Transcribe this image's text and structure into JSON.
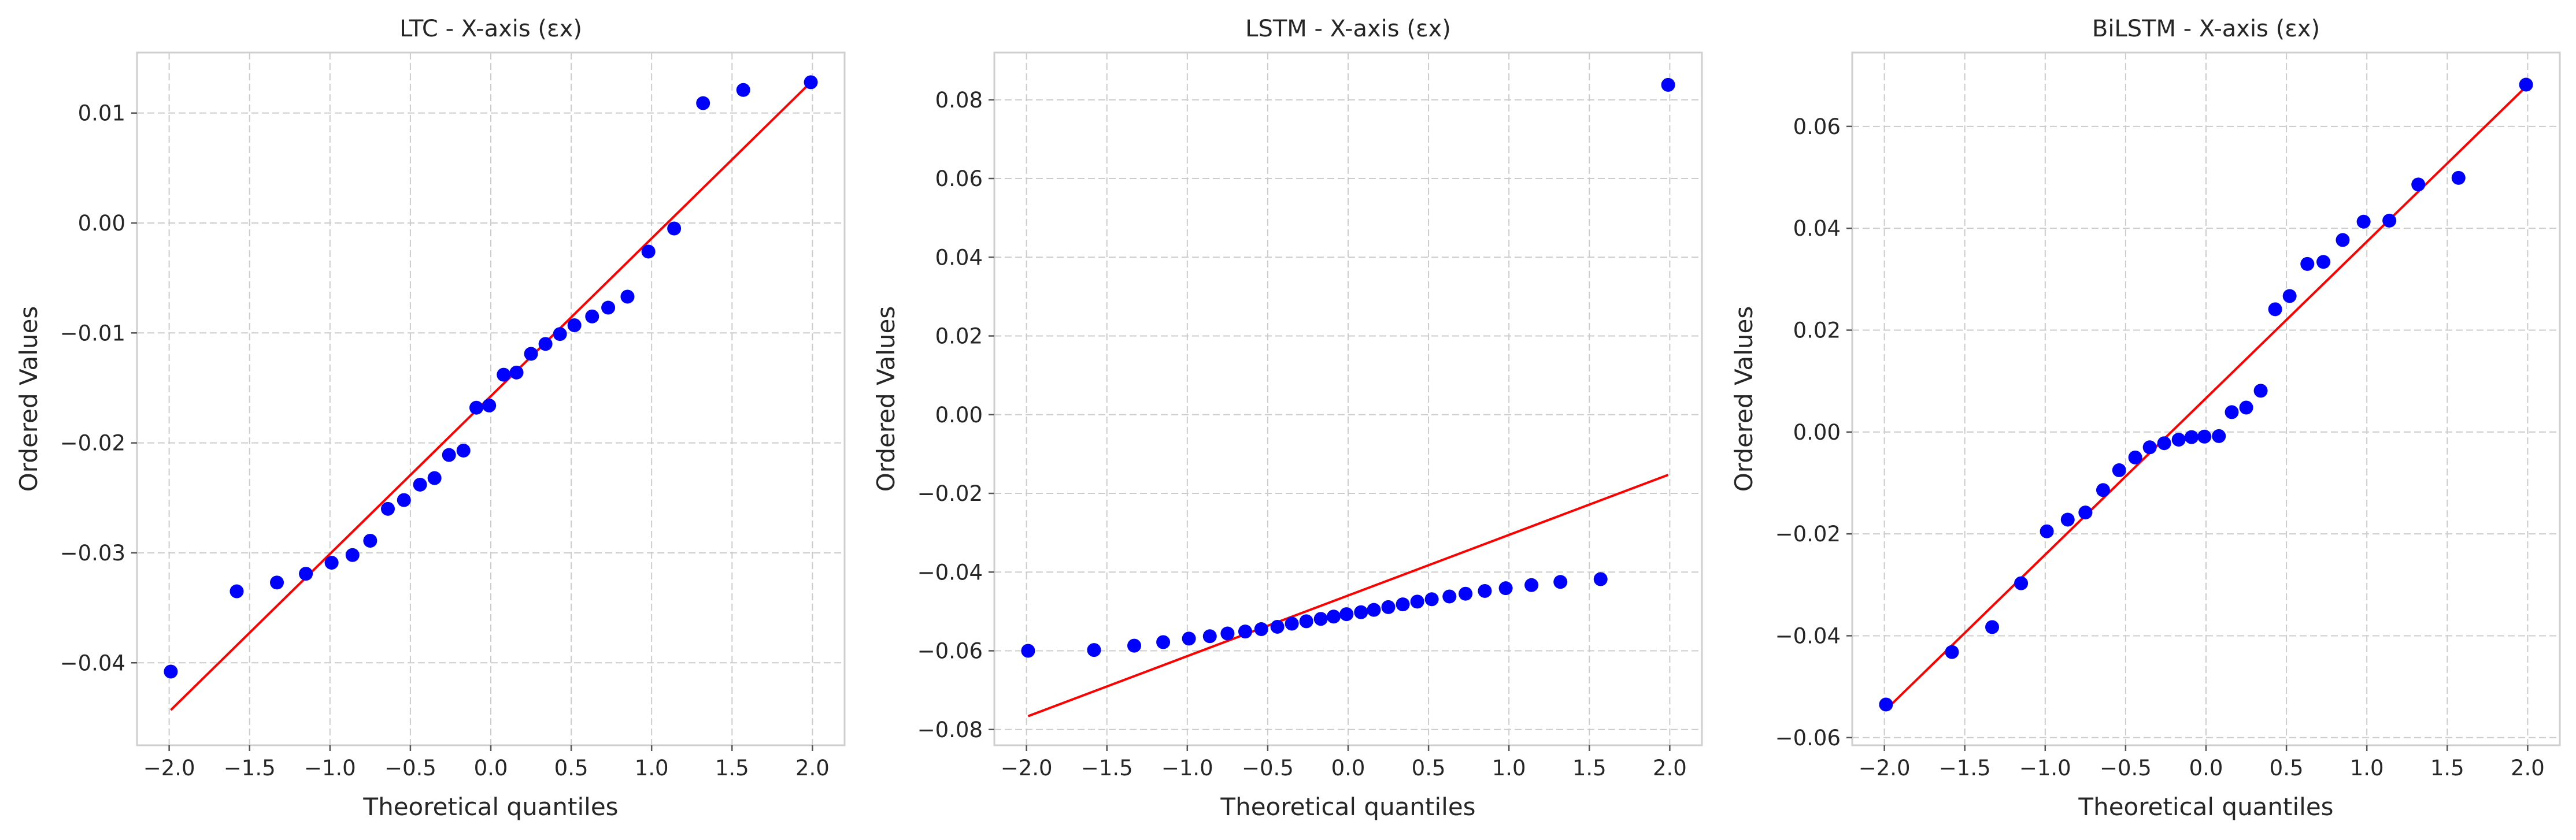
{
  "chart_data": [
    {
      "type": "scatter",
      "title": "LTC - X-axis (εx)",
      "xlabel": "Theoretical quantiles",
      "ylabel": "Ordered Values",
      "xlim": [
        -2.2,
        2.2
      ],
      "ylim": [
        -0.0475,
        0.0155
      ],
      "xticks": [
        -2.0,
        -1.5,
        -1.0,
        -0.5,
        0.0,
        0.5,
        1.0,
        1.5,
        2.0
      ],
      "xtick_labels": [
        "−2.0",
        "−1.5",
        "−1.0",
        "−0.5",
        "0.0",
        "0.5",
        "1.0",
        "1.5",
        "2.0"
      ],
      "yticks": [
        -0.04,
        -0.03,
        -0.02,
        -0.01,
        0.0,
        0.01
      ],
      "ytick_labels": [
        "−0.04",
        "−0.03",
        "−0.02",
        "−0.01",
        "0.00",
        "0.01"
      ],
      "grid": true,
      "series": [
        {
          "kind": "points",
          "color": "#0000ff",
          "x": [
            -1.99,
            -1.58,
            -1.33,
            -1.15,
            -0.99,
            -0.86,
            -0.75,
            -0.64,
            -0.54,
            -0.44,
            -0.35,
            -0.26,
            -0.17,
            -0.09,
            -0.01,
            0.08,
            0.16,
            0.25,
            0.34,
            0.43,
            0.52,
            0.63,
            0.73,
            0.85,
            0.98,
            1.14,
            1.32,
            1.57,
            1.99
          ],
          "y": [
            -0.0408,
            -0.0335,
            -0.0327,
            -0.0319,
            -0.0309,
            -0.0302,
            -0.0289,
            -0.026,
            -0.0252,
            -0.0238,
            -0.0232,
            -0.0211,
            -0.0207,
            -0.0168,
            -0.0166,
            -0.0138,
            -0.0136,
            -0.0119,
            -0.011,
            -0.0101,
            -0.0093,
            -0.0085,
            -0.0077,
            -0.0067,
            -0.0026,
            -0.0005,
            0.0109,
            0.0121,
            0.0128
          ]
        },
        {
          "kind": "line",
          "color": "#ff0000",
          "x": [
            -1.99,
            1.99
          ],
          "y": [
            -0.0443,
            0.0128
          ]
        }
      ]
    },
    {
      "type": "scatter",
      "title": "LSTM - X-axis (εx)",
      "xlabel": "Theoretical quantiles",
      "ylabel": "Ordered Values",
      "xlim": [
        -2.2,
        2.2
      ],
      "ylim": [
        -0.084,
        0.092
      ],
      "xticks": [
        -2.0,
        -1.5,
        -1.0,
        -0.5,
        0.0,
        0.5,
        1.0,
        1.5,
        2.0
      ],
      "xtick_labels": [
        "−2.0",
        "−1.5",
        "−1.0",
        "−0.5",
        "0.0",
        "0.5",
        "1.0",
        "1.5",
        "2.0"
      ],
      "yticks": [
        -0.08,
        -0.06,
        -0.04,
        -0.02,
        0.0,
        0.02,
        0.04,
        0.06,
        0.08
      ],
      "ytick_labels": [
        "−0.08",
        "−0.06",
        "−0.04",
        "−0.02",
        "0.00",
        "0.02",
        "0.04",
        "0.06",
        "0.08"
      ],
      "grid": true,
      "series": [
        {
          "kind": "points",
          "color": "#0000ff",
          "x": [
            -1.99,
            -1.58,
            -1.33,
            -1.15,
            -0.99,
            -0.86,
            -0.75,
            -0.64,
            -0.54,
            -0.44,
            -0.35,
            -0.26,
            -0.17,
            -0.09,
            -0.01,
            0.08,
            0.16,
            0.25,
            0.34,
            0.43,
            0.52,
            0.63,
            0.73,
            0.85,
            0.98,
            1.14,
            1.32,
            1.57,
            1.99
          ],
          "y": [
            -0.06,
            -0.0598,
            -0.0587,
            -0.0578,
            -0.0569,
            -0.0563,
            -0.0556,
            -0.0551,
            -0.0545,
            -0.0539,
            -0.0531,
            -0.0525,
            -0.0519,
            -0.0513,
            -0.0507,
            -0.0502,
            -0.0496,
            -0.0489,
            -0.0482,
            -0.0475,
            -0.0469,
            -0.0462,
            -0.0455,
            -0.0448,
            -0.0441,
            -0.0433,
            -0.0425,
            -0.0418,
            0.0838
          ]
        },
        {
          "kind": "line",
          "color": "#ff0000",
          "x": [
            -1.99,
            1.99
          ],
          "y": [
            -0.0766,
            -0.0153
          ]
        }
      ]
    },
    {
      "type": "scatter",
      "title": "BiLSTM - X-axis (εx)",
      "xlabel": "Theoretical quantiles",
      "ylabel": "Ordered Values",
      "xlim": [
        -2.2,
        2.2
      ],
      "ylim": [
        -0.0615,
        0.0745
      ],
      "xticks": [
        -2.0,
        -1.5,
        -1.0,
        -0.5,
        0.0,
        0.5,
        1.0,
        1.5,
        2.0
      ],
      "xtick_labels": [
        "−2.0",
        "−1.5",
        "−1.0",
        "−0.5",
        "0.0",
        "0.5",
        "1.0",
        "1.5",
        "2.0"
      ],
      "yticks": [
        -0.06,
        -0.04,
        -0.02,
        0.0,
        0.02,
        0.04,
        0.06
      ],
      "ytick_labels": [
        "−0.06",
        "−0.04",
        "−0.02",
        "0.00",
        "0.02",
        "0.04",
        "0.06"
      ],
      "grid": true,
      "series": [
        {
          "kind": "points",
          "color": "#0000ff",
          "x": [
            -1.99,
            -1.58,
            -1.33,
            -1.15,
            -0.99,
            -0.86,
            -0.75,
            -0.64,
            -0.54,
            -0.44,
            -0.35,
            -0.26,
            -0.17,
            -0.09,
            -0.01,
            0.08,
            0.16,
            0.25,
            0.34,
            0.43,
            0.52,
            0.63,
            0.73,
            0.85,
            0.98,
            1.14,
            1.32,
            1.57,
            1.99
          ],
          "y": [
            -0.0535,
            -0.0432,
            -0.0383,
            -0.0297,
            -0.0195,
            -0.0172,
            -0.0158,
            -0.0114,
            -0.0075,
            -0.005,
            -0.003,
            -0.0022,
            -0.0015,
            -0.001,
            -0.0009,
            -0.0008,
            0.0039,
            0.0048,
            0.0081,
            0.0241,
            0.0267,
            0.033,
            0.0334,
            0.0377,
            0.0413,
            0.0415,
            0.0486,
            0.0499,
            0.0682
          ]
        },
        {
          "kind": "line",
          "color": "#ff0000",
          "x": [
            -1.99,
            1.99
          ],
          "y": [
            -0.0545,
            0.0678
          ]
        }
      ]
    }
  ]
}
